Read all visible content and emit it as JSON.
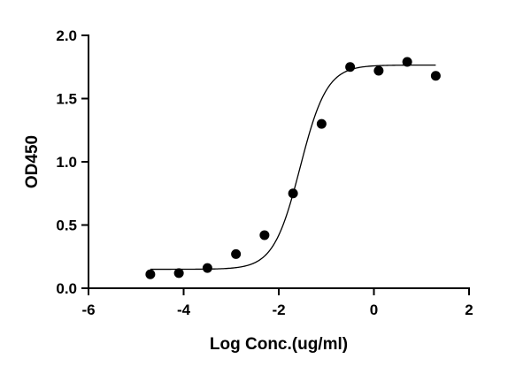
{
  "chart_data": {
    "type": "scatter",
    "title": "",
    "xlabel": "Log Conc.(ug/ml)",
    "ylabel": "OD450",
    "xlim": [
      -6,
      2
    ],
    "ylim": [
      0,
      2
    ],
    "x_ticks": [
      -6,
      -4,
      -2,
      0,
      2
    ],
    "y_ticks": [
      0.0,
      0.5,
      1.0,
      1.5,
      2.0
    ],
    "x_tick_labels": [
      "-6",
      "-4",
      "-2",
      "0",
      "2"
    ],
    "y_tick_labels": [
      "0.0",
      "0.5",
      "1.0",
      "1.5",
      "2.0"
    ],
    "grid": false,
    "legend": "none",
    "series": [
      {
        "points": [
          {
            "x": -4.7,
            "y": 0.11
          },
          {
            "x": -4.1,
            "y": 0.12
          },
          {
            "x": -3.5,
            "y": 0.16
          },
          {
            "x": -2.9,
            "y": 0.27
          },
          {
            "x": -2.3,
            "y": 0.42
          },
          {
            "x": -1.7,
            "y": 0.75
          },
          {
            "x": -1.1,
            "y": 1.3
          },
          {
            "x": -0.5,
            "y": 1.75
          },
          {
            "x": 0.1,
            "y": 1.72
          },
          {
            "x": 0.7,
            "y": 1.79
          },
          {
            "x": 1.3,
            "y": 1.68
          }
        ],
        "fit": {
          "model": "4PL",
          "bottom": 0.15,
          "top": 1.765,
          "logEC50": -1.55,
          "hill": 1.55,
          "x_range": [
            -4.7,
            1.3
          ]
        }
      }
    ],
    "colors": {
      "marker": "#000000",
      "line": "#000000",
      "axis": "#000000"
    }
  }
}
